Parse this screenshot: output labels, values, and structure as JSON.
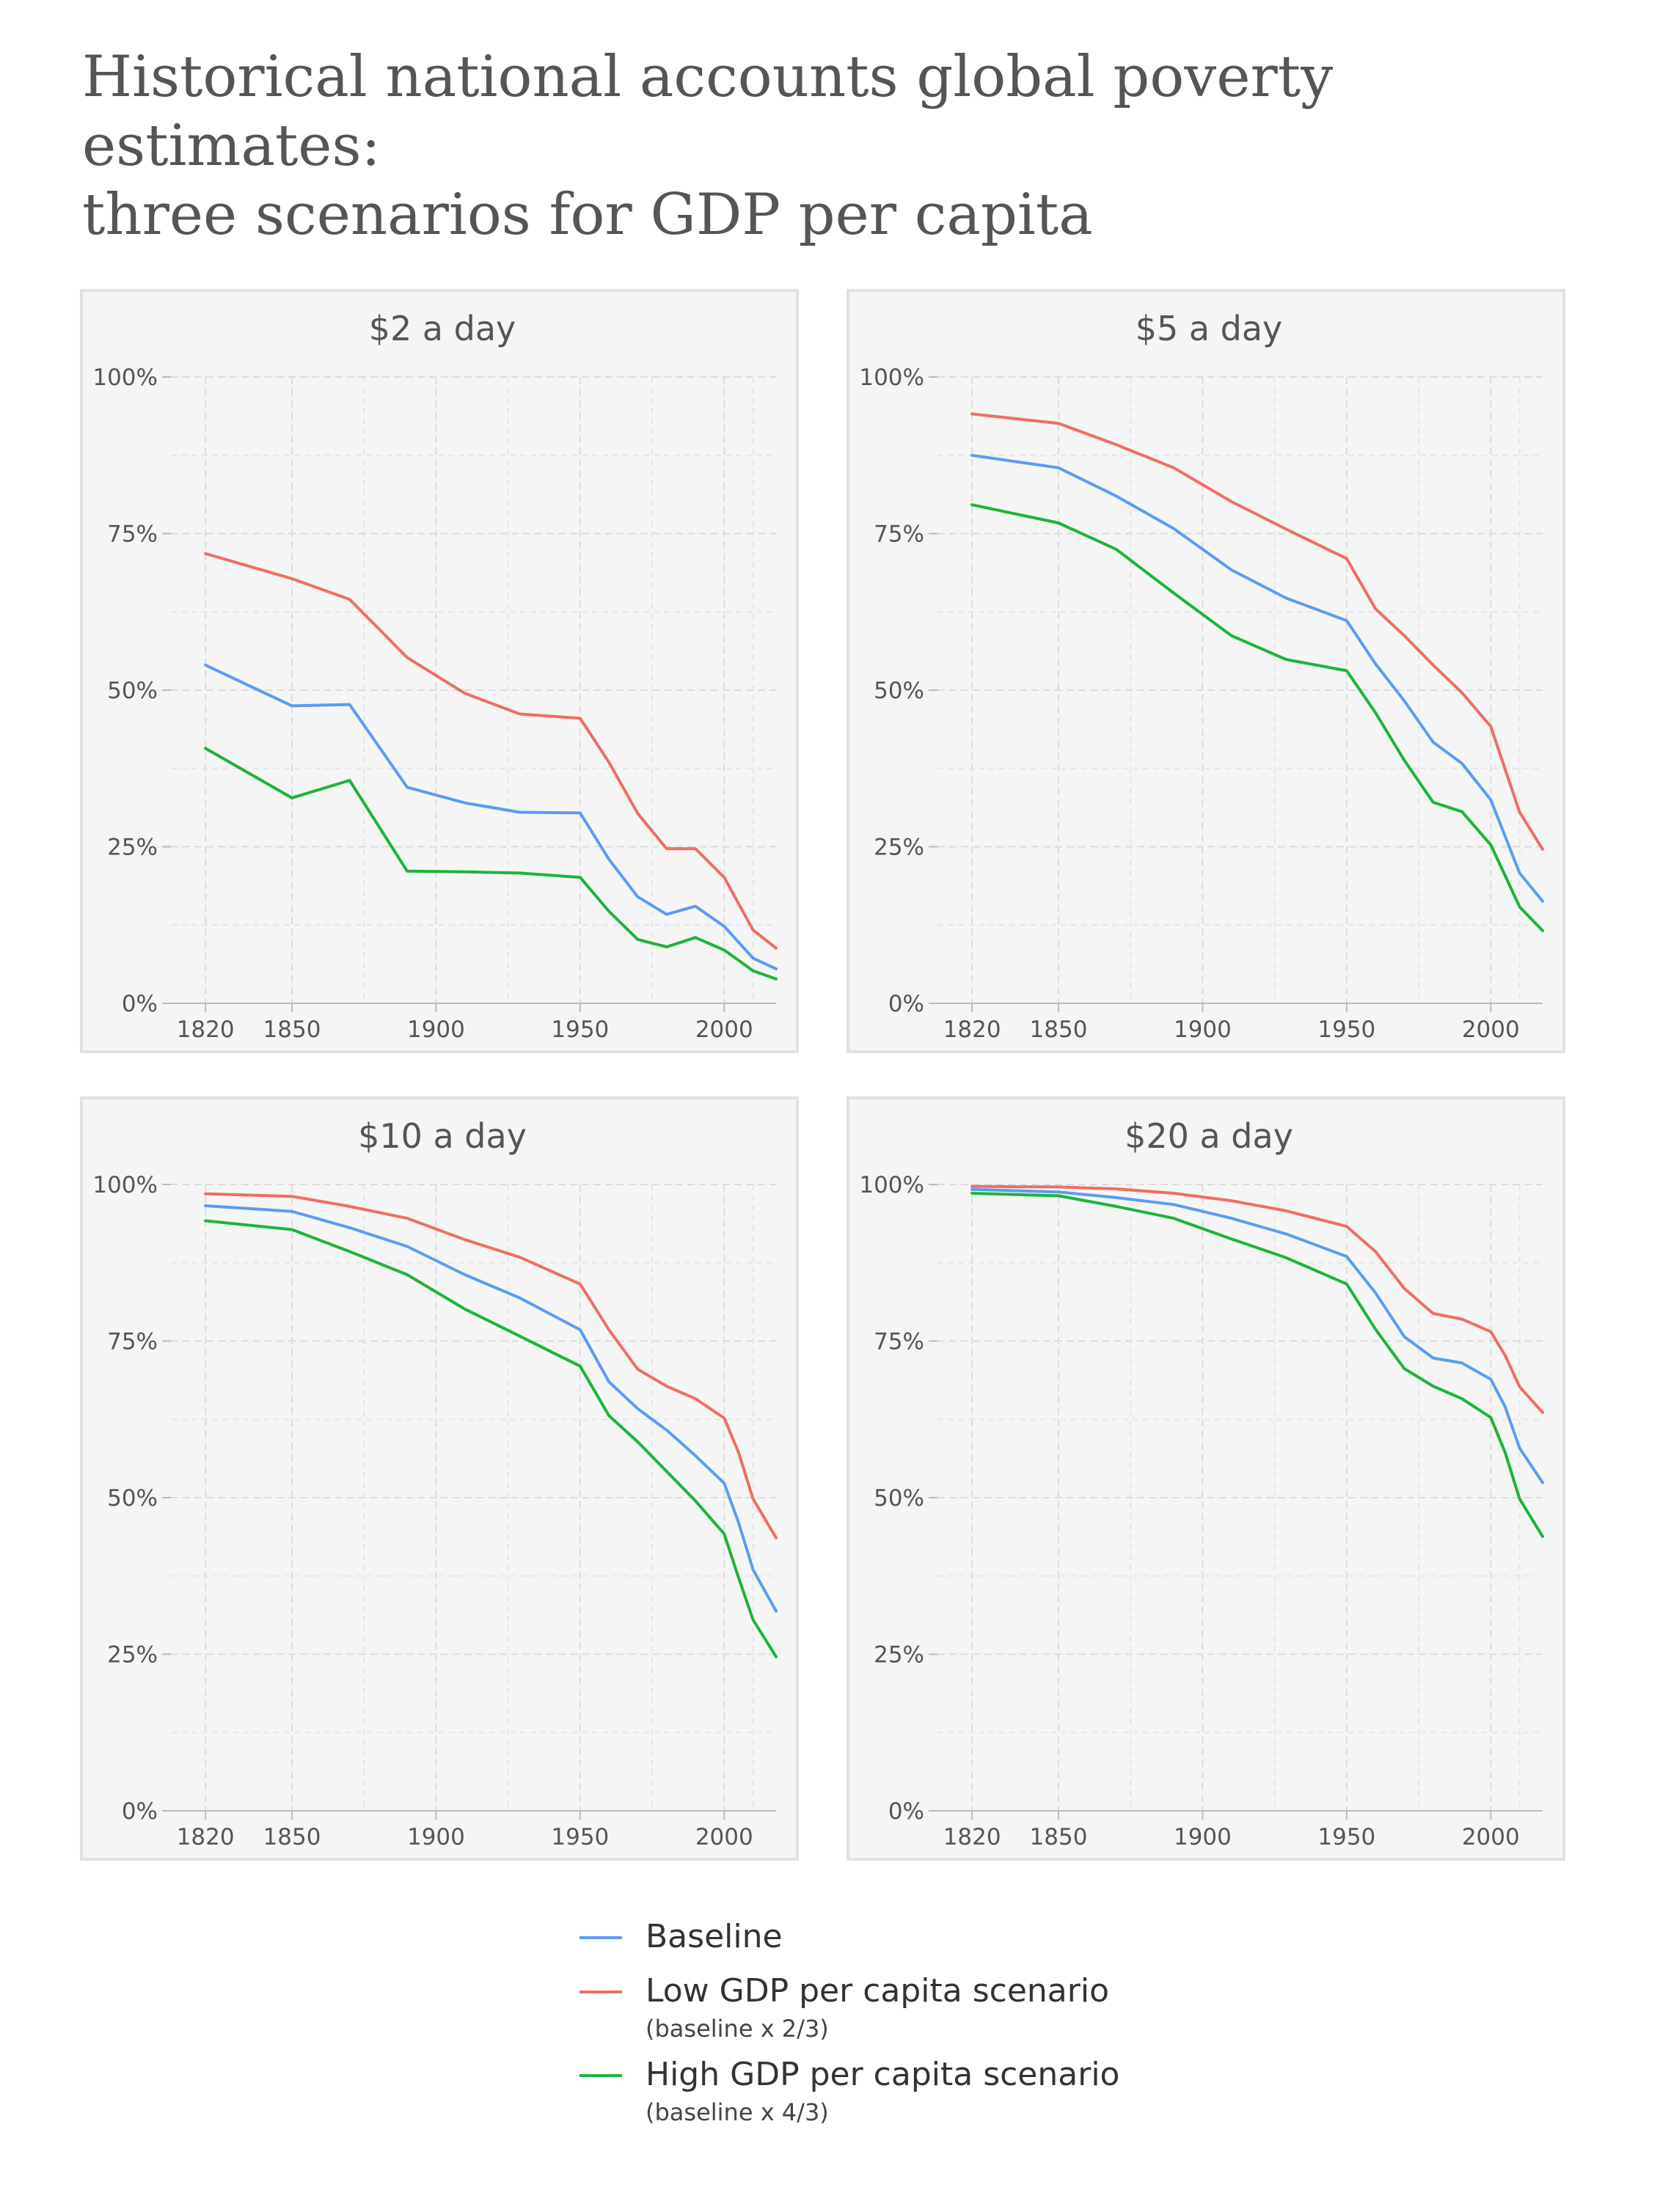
{
  "title_lines": [
    "Historical national accounts global poverty estimates:",
    "three scenarios for GDP per capita"
  ],
  "colors": {
    "Baseline": "#5b9cf2",
    "Low": "#ef6e65",
    "High": "#1eb33c"
  },
  "legend": [
    {
      "label": "Baseline",
      "note": "",
      "color": "#5b9cf2"
    },
    {
      "label": "Low GDP per capita scenario",
      "note": "(baseline x 2/3)",
      "color": "#ef6e65"
    },
    {
      "label": "High GDP per capita scenario",
      "note": "(baseline x 4/3)",
      "color": "#1eb33c"
    }
  ],
  "chart_data": [
    {
      "type": "line",
      "title": "$2 a day",
      "xlabel": "",
      "ylabel": "",
      "xlim": [
        1808,
        2018
      ],
      "ylim": [
        0,
        100
      ],
      "xticks": [
        1820,
        1850,
        1900,
        1950,
        2000
      ],
      "yticks": [
        0,
        25,
        50,
        75,
        100
      ],
      "ytick_labels": [
        "0%",
        "25%",
        "50%",
        "75%",
        "100%"
      ],
      "grid": true,
      "x": [
        1820,
        1850,
        1870,
        1890,
        1910,
        1929,
        1950,
        1960,
        1970,
        1980,
        1990,
        2000,
        2010,
        2018
      ],
      "series": [
        {
          "name": "Baseline",
          "values": [
            54,
            47.5,
            47.7,
            34.5,
            32,
            30.5,
            30.4,
            23,
            17,
            14.2,
            15.5,
            12.3,
            7.2,
            5.5
          ]
        },
        {
          "name": "Low GDP per capita scenario",
          "values": [
            71.8,
            67.8,
            64.5,
            55.2,
            49.5,
            46.2,
            45.5,
            38.5,
            30.3,
            24.7,
            24.7,
            20.1,
            11.7,
            8.8
          ]
        },
        {
          "name": "High GDP per capita scenario",
          "values": [
            40.7,
            32.8,
            35.6,
            21.1,
            21,
            20.8,
            20.1,
            14.7,
            10.2,
            9,
            10.5,
            8.5,
            5.2,
            3.9
          ]
        }
      ]
    },
    {
      "type": "line",
      "title": "$5 a day",
      "xlabel": "",
      "ylabel": "",
      "xlim": [
        1808,
        2018
      ],
      "ylim": [
        0,
        100
      ],
      "xticks": [
        1820,
        1850,
        1900,
        1950,
        2000
      ],
      "yticks": [
        0,
        25,
        50,
        75,
        100
      ],
      "ytick_labels": [
        "0%",
        "25%",
        "50%",
        "75%",
        "100%"
      ],
      "grid": true,
      "x": [
        1820,
        1850,
        1870,
        1890,
        1910,
        1929,
        1950,
        1960,
        1970,
        1980,
        1990,
        2000,
        2010,
        2018
      ],
      "series": [
        {
          "name": "Baseline",
          "values": [
            87.5,
            85.5,
            81,
            75.8,
            69.2,
            64.7,
            61.1,
            54.2,
            48.3,
            41.7,
            38.3,
            32.5,
            20.8,
            16.3
          ]
        },
        {
          "name": "Low GDP per capita scenario",
          "values": [
            94.1,
            92.6,
            89.2,
            85.5,
            80.1,
            75.7,
            71,
            63,
            58.7,
            54,
            49.6,
            44.2,
            30.5,
            24.6
          ]
        },
        {
          "name": "High GDP per capita scenario",
          "values": [
            79.6,
            76.7,
            72.5,
            65.5,
            58.7,
            54.9,
            53.1,
            46.4,
            38.8,
            32.1,
            30.6,
            25.3,
            15.4,
            11.6
          ]
        }
      ]
    },
    {
      "type": "line",
      "title": "$10 a day",
      "xlabel": "",
      "ylabel": "",
      "xlim": [
        1808,
        2018
      ],
      "ylim": [
        0,
        100
      ],
      "xticks": [
        1820,
        1850,
        1900,
        1950,
        2000
      ],
      "yticks": [
        0,
        25,
        50,
        75,
        100
      ],
      "ytick_labels": [
        "0%",
        "25%",
        "50%",
        "75%",
        "100%"
      ],
      "grid": true,
      "x": [
        1820,
        1850,
        1870,
        1890,
        1910,
        1929,
        1950,
        1960,
        1970,
        1980,
        1990,
        2000,
        2005,
        2010,
        2018
      ],
      "series": [
        {
          "name": "Baseline",
          "values": [
            96.6,
            95.7,
            93.1,
            90.1,
            85.6,
            81.9,
            76.8,
            68.5,
            64.2,
            60.8,
            56.7,
            52.3,
            46,
            38.5,
            31.9
          ]
        },
        {
          "name": "Low GDP per capita scenario",
          "values": [
            98.5,
            98.1,
            96.5,
            94.6,
            91.2,
            88.4,
            84.1,
            76.8,
            70.5,
            67.8,
            65.8,
            62.7,
            57.2,
            49.8,
            43.6
          ]
        },
        {
          "name": "High GDP per capita scenario",
          "values": [
            94.2,
            92.8,
            89.3,
            85.6,
            80.1,
            75.8,
            71,
            63.1,
            58.9,
            54.2,
            49.5,
            44.2,
            37.2,
            30.5,
            24.6
          ]
        }
      ]
    },
    {
      "type": "line",
      "title": "$20 a day",
      "xlabel": "",
      "ylabel": "",
      "xlim": [
        1808,
        2018
      ],
      "ylim": [
        0,
        100
      ],
      "xticks": [
        1820,
        1850,
        1900,
        1950,
        2000
      ],
      "yticks": [
        0,
        25,
        50,
        75,
        100
      ],
      "ytick_labels": [
        "0%",
        "25%",
        "50%",
        "75%",
        "100%"
      ],
      "grid": true,
      "x": [
        1820,
        1850,
        1870,
        1890,
        1910,
        1929,
        1950,
        1960,
        1970,
        1980,
        1990,
        2000,
        2005,
        2010,
        2018
      ],
      "series": [
        {
          "name": "Baseline",
          "values": [
            99.2,
            98.8,
            97.9,
            96.8,
            94.6,
            92.1,
            88.5,
            82.7,
            75.7,
            72.3,
            71.5,
            68.9,
            64.5,
            57.9,
            52.4
          ]
        },
        {
          "name": "Low GDP per capita scenario",
          "values": [
            99.7,
            99.6,
            99.3,
            98.6,
            97.4,
            95.8,
            93.3,
            89.3,
            83.4,
            79.4,
            78.5,
            76.5,
            72.7,
            67.7,
            63.6
          ]
        },
        {
          "name": "High GDP per capita scenario",
          "values": [
            98.6,
            98.2,
            96.5,
            94.6,
            91.3,
            88.3,
            84.1,
            76.9,
            70.6,
            67.8,
            65.8,
            62.8,
            57.2,
            49.8,
            43.8
          ]
        }
      ]
    }
  ]
}
